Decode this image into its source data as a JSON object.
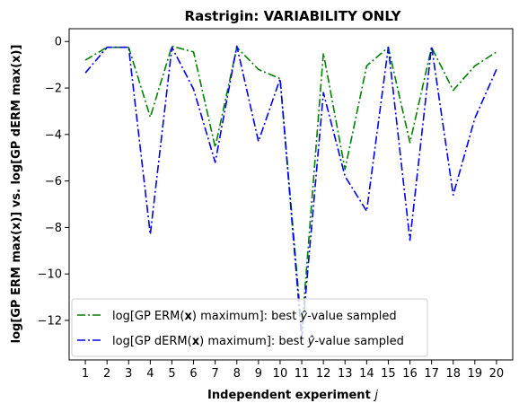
{
  "chart_data": {
    "type": "line",
    "title": "Rastrigin: VARIABILITY ONLY",
    "xlabel": "Independent experiment",
    "xlabel_var": "j",
    "ylabel": "log[GP ERM max(x)] vs. log[GP dERM max(x)]",
    "x": [
      1,
      2,
      3,
      4,
      5,
      6,
      7,
      8,
      9,
      10,
      11,
      12,
      13,
      14,
      15,
      16,
      17,
      18,
      19,
      20
    ],
    "xlim": [
      0.25,
      20.75
    ],
    "ylim": [
      -13.7,
      0.55
    ],
    "yticks": [
      0,
      -2,
      -4,
      -6,
      -8,
      -10,
      -12
    ],
    "legend_position": "lower-left",
    "series": [
      {
        "name_pre": "log[GP ERM(",
        "name_bold": "x",
        "name_mid": ") maximum]: best ",
        "name_var": "ŷ",
        "name_post": "-value sampled",
        "color": "#008000",
        "dash": "9,3,2,3",
        "values": [
          -0.8,
          -0.25,
          -0.25,
          -3.25,
          -0.2,
          -0.45,
          -4.55,
          -0.25,
          -1.2,
          -1.6,
          -12.4,
          -0.5,
          -5.5,
          -1.05,
          -0.25,
          -4.35,
          -0.25,
          -2.1,
          -1.05,
          -0.45
        ]
      },
      {
        "name_pre": "log[GP dERM(",
        "name_bold": "x",
        "name_mid": ") maximum]: best ",
        "name_var": "ŷ",
        "name_post": "-value sampled",
        "color": "#0000ee",
        "dash": "9,3,2,3",
        "values": [
          -1.35,
          -0.25,
          -0.25,
          -8.3,
          -0.25,
          -2.05,
          -5.2,
          -0.2,
          -4.3,
          -1.6,
          -12.8,
          -2.2,
          -5.8,
          -7.3,
          -0.25,
          -8.55,
          -0.2,
          -6.6,
          -3.3,
          -1.2
        ]
      }
    ]
  }
}
